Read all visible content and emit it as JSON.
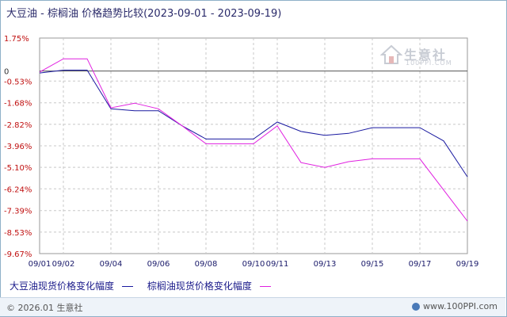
{
  "title": {
    "main": "大豆油 - 棕榈油 价格趋势比较",
    "range": "(2023-09-01 - 2023-09-19)"
  },
  "watermark": {
    "name": "生意社",
    "url": "100PPI.COM"
  },
  "footer": {
    "copyright": "© 2026.01 生意社",
    "site": "www.100PPI.com"
  },
  "colors": {
    "soybean": "#1a1aa0",
    "palm": "#e020e0",
    "tick_label": "#c01010",
    "x_label": "#1a1a6a",
    "grid": "#c8c8c8"
  },
  "chart_data": {
    "type": "line",
    "ylim": [
      -9.67,
      1.75
    ],
    "y_ticks": [
      "1.75%",
      "0",
      "-0.53%",
      "-1.68%",
      "-2.82%",
      "-3.96%",
      "-5.10%",
      "-6.24%",
      "-7.39%",
      "-8.53%",
      "-9.67%"
    ],
    "y_tick_values": [
      1.75,
      0,
      -0.53,
      -1.68,
      -2.82,
      -3.96,
      -5.1,
      -6.24,
      -7.39,
      -8.53,
      -9.67
    ],
    "x_tick_labels": [
      "09/01",
      "09/02",
      "09/04",
      "09/06",
      "09/08",
      "09/10",
      "09/11",
      "09/13",
      "09/15",
      "09/17",
      "09/19"
    ],
    "x": [
      "09/01",
      "09/02",
      "09/03",
      "09/04",
      "09/05",
      "09/06",
      "09/07",
      "09/08",
      "09/09",
      "09/10",
      "09/11",
      "09/12",
      "09/13",
      "09/14",
      "09/15",
      "09/16",
      "09/17",
      "09/18",
      "09/19"
    ],
    "series": [
      {
        "name": "大豆油现货价格变化幅度",
        "key": "soybean",
        "values": [
          -0.1,
          0.05,
          0.05,
          -2.0,
          -2.1,
          -2.1,
          -2.9,
          -3.6,
          -3.6,
          -3.6,
          -2.7,
          -3.2,
          -3.4,
          -3.3,
          -3.0,
          -3.0,
          -3.0,
          -3.7,
          -5.6
        ]
      },
      {
        "name": "棕榈油现货价格变化幅度",
        "key": "palm",
        "values": [
          -0.05,
          0.65,
          0.65,
          -1.95,
          -1.7,
          -2.0,
          -2.9,
          -3.85,
          -3.85,
          -3.85,
          -2.9,
          -4.85,
          -5.1,
          -4.8,
          -4.65,
          -4.65,
          -4.65,
          -6.3,
          -7.95
        ]
      }
    ]
  }
}
